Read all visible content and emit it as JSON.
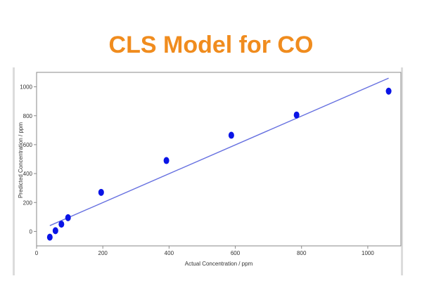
{
  "title": "CLS Model for CO",
  "colors": {
    "title": "#f08c1e",
    "points": "#0a14e6",
    "fit_line": "#6670e0",
    "frame": "#8a8a8a",
    "panel_edge": "#dcdcdc"
  },
  "chart_data": {
    "type": "scatter",
    "xlabel": "Actual Concentration / ppm",
    "ylabel": "Predicted Concentration / ppm",
    "xlim": [
      0,
      1100
    ],
    "ylim": [
      -100,
      1100
    ],
    "xticks": [
      0,
      200,
      400,
      600,
      800,
      1000
    ],
    "yticks": [
      0,
      200,
      400,
      600,
      800,
      1000
    ],
    "points": [
      {
        "x": 40,
        "y": -40
      },
      {
        "x": 57,
        "y": 5
      },
      {
        "x": 75,
        "y": 50
      },
      {
        "x": 95,
        "y": 95
      },
      {
        "x": 195,
        "y": 270
      },
      {
        "x": 392,
        "y": 490
      },
      {
        "x": 588,
        "y": 665
      },
      {
        "x": 785,
        "y": 805
      },
      {
        "x": 1063,
        "y": 970
      }
    ],
    "fit_line": {
      "x1": 40,
      "y1": 40,
      "x2": 1063,
      "y2": 1060
    },
    "grid": false,
    "legend": "none"
  }
}
